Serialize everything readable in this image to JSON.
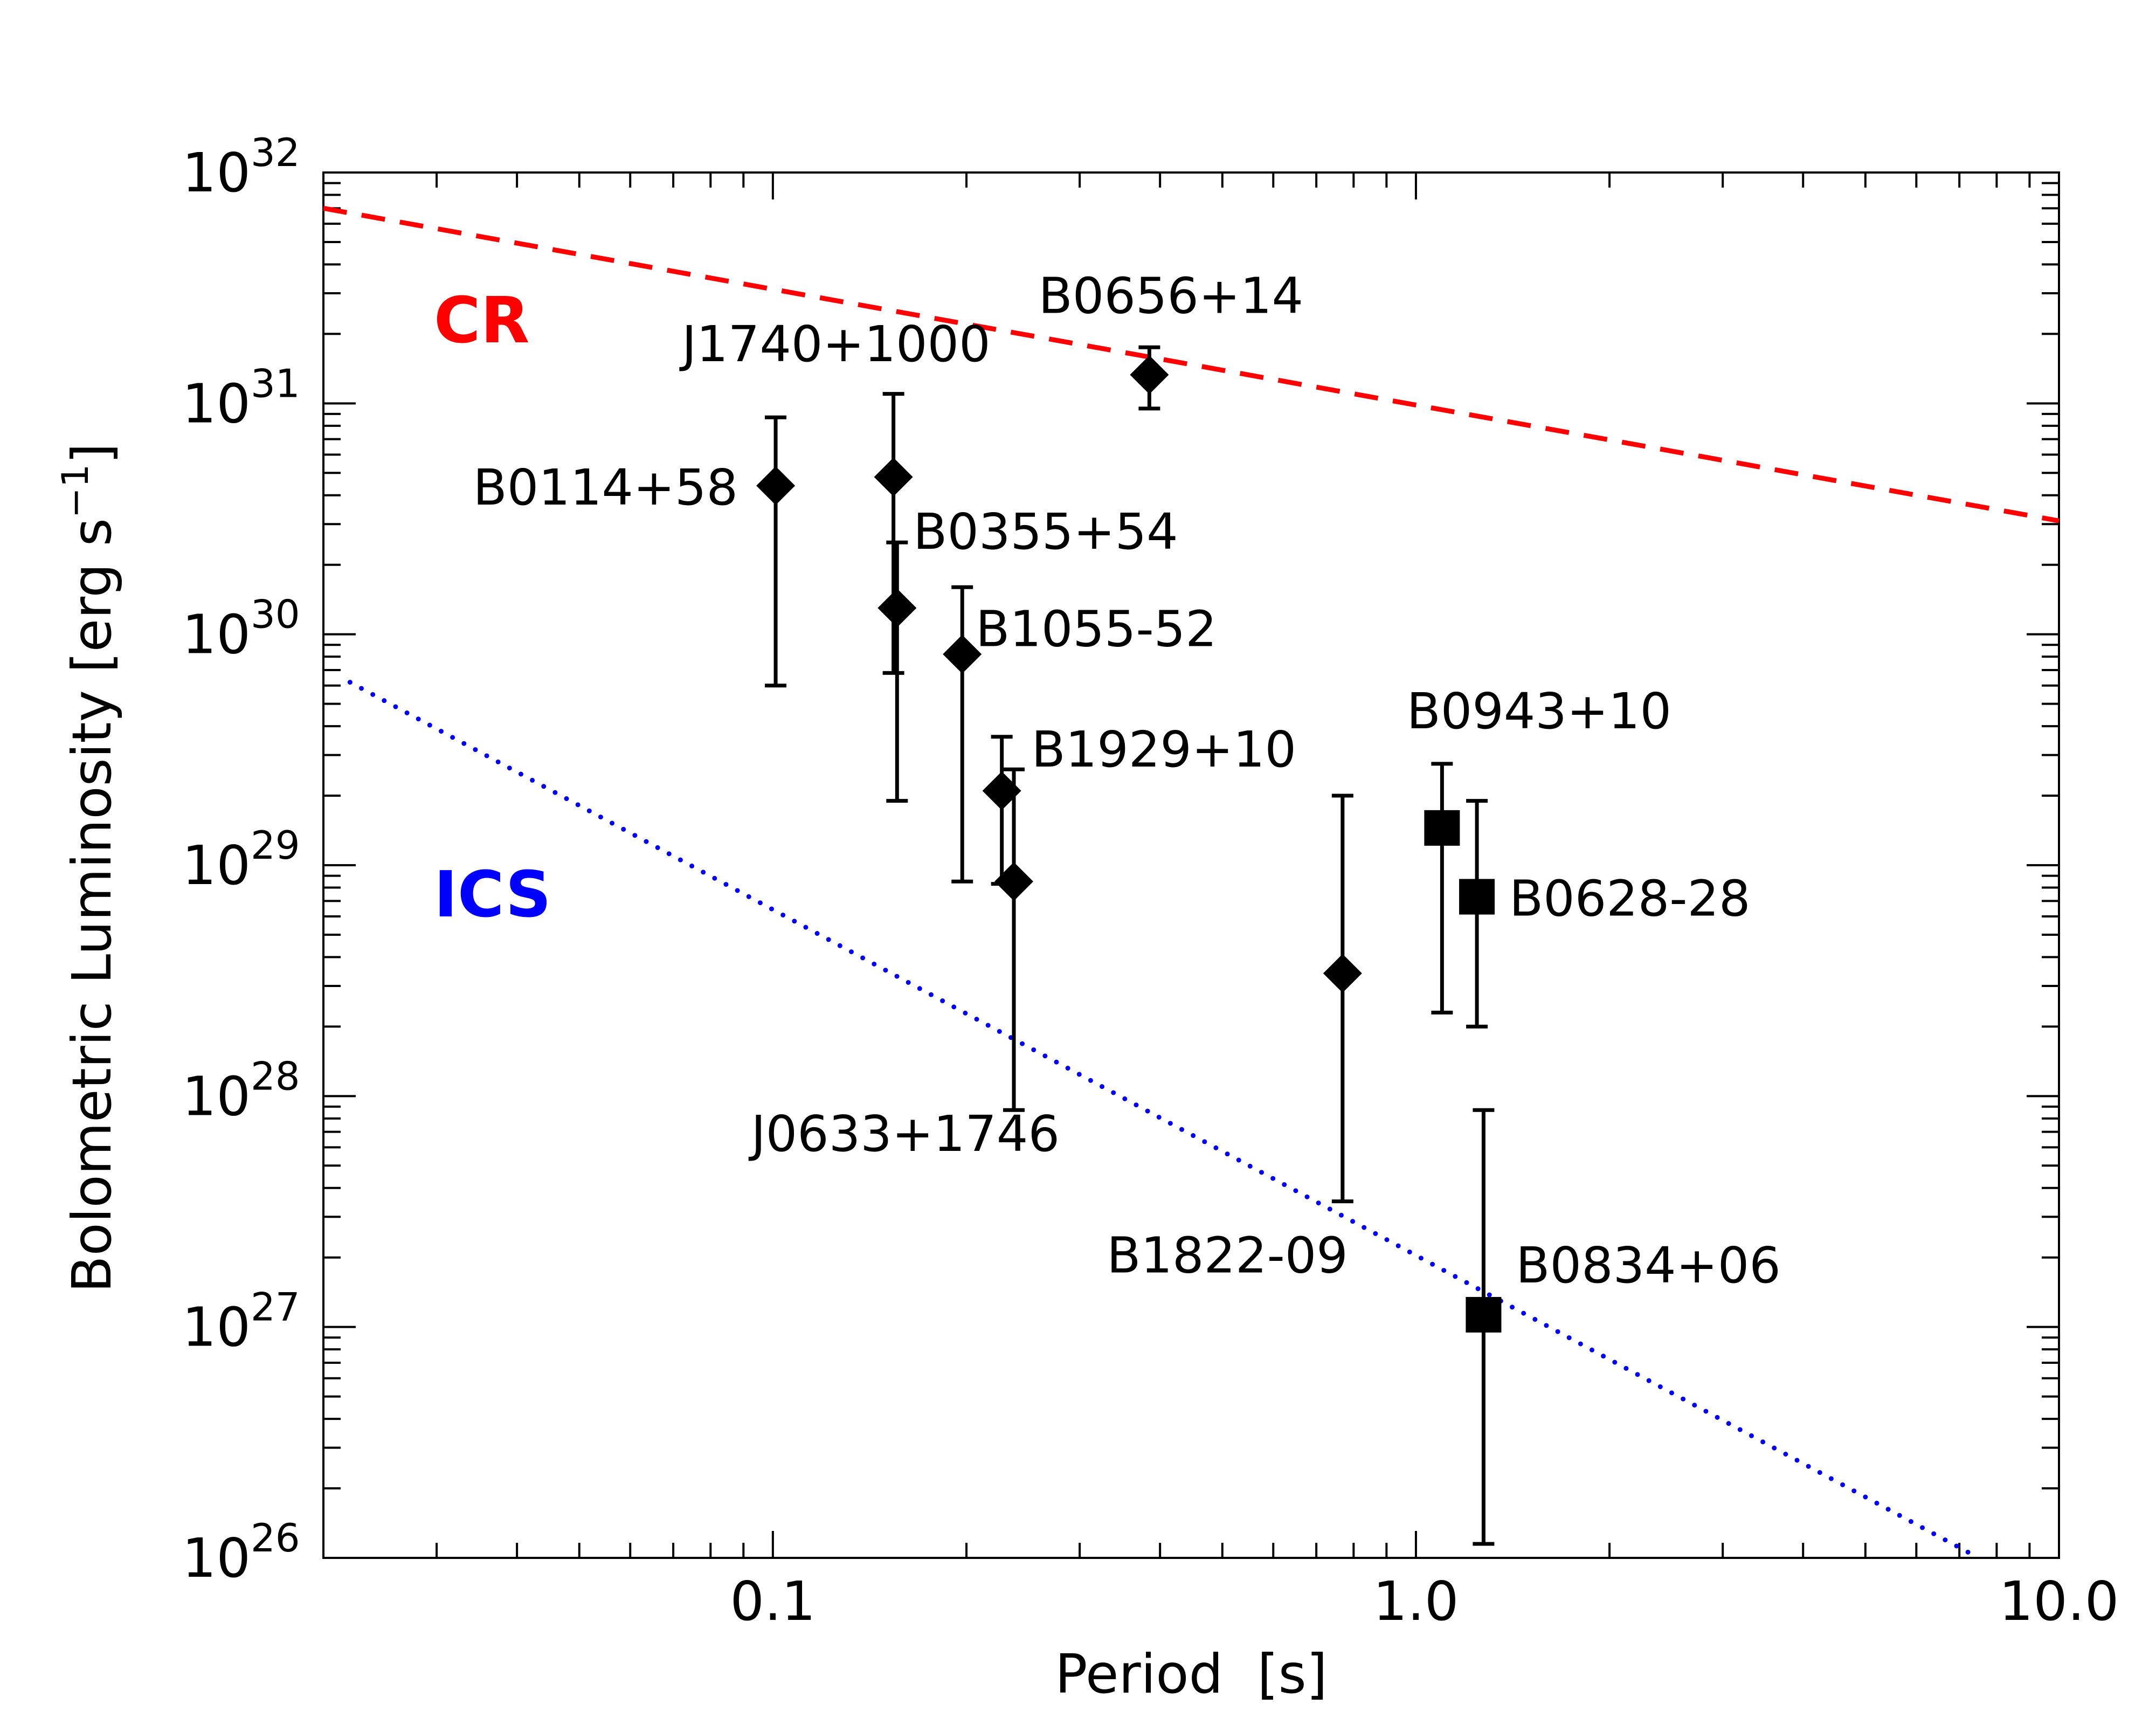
{
  "chart_data": {
    "type": "scatter",
    "xlabel": "Period  [s]",
    "ylabel_main": "Bolometric Luminosity [erg s",
    "ylabel_sup": "−1",
    "ylabel_close": "]",
    "xscale": "log",
    "yscale": "log",
    "xlim": [
      0.02,
      10.0
    ],
    "ylim": [
      1e+26,
      1e+32
    ],
    "xtick_labels": [
      {
        "value": 0.1,
        "label": "0.1"
      },
      {
        "value": 1.0,
        "label": "1.0"
      },
      {
        "value": 10.0,
        "label": "10.0"
      }
    ],
    "ytick_labels": [
      {
        "exp": 26,
        "base": "10",
        "sup": "26"
      },
      {
        "exp": 27,
        "base": "10",
        "sup": "27"
      },
      {
        "exp": 28,
        "base": "10",
        "sup": "28"
      },
      {
        "exp": 29,
        "base": "10",
        "sup": "29"
      },
      {
        "exp": 30,
        "base": "10",
        "sup": "30"
      },
      {
        "exp": 31,
        "base": "10",
        "sup": "31"
      },
      {
        "exp": 32,
        "base": "10",
        "sup": "32"
      }
    ],
    "lines": [
      {
        "label": "CR",
        "style": "dashed",
        "color": "#ff0000",
        "x": [
          0.02,
          10.0
        ],
        "y": [
          7e+31,
          3.1e+30
        ]
      },
      {
        "label": "ICS",
        "style": "dotted",
        "color": "#0000ff",
        "x": [
          0.022,
          7.5
        ],
        "y": [
          6.2e+29,
          1e+26
        ]
      }
    ],
    "points": [
      {
        "name": "B0114+58",
        "marker": "diamond",
        "x": 0.101,
        "y": 4.4e+30,
        "ylo": 6e+29,
        "yhi": 8.7e+30
      },
      {
        "name": "J1740+1000",
        "marker": "diamond",
        "x": 0.154,
        "y": 4.8e+30,
        "ylo": 6.8e+29,
        "yhi": 1.1e+31
      },
      {
        "name": "B0355+54",
        "marker": "diamond",
        "x": 0.156,
        "y": 1.3e+30,
        "ylo": 1.9e+29,
        "yhi": 2.5e+30
      },
      {
        "name": "B0656+14",
        "marker": "diamond",
        "x": 0.385,
        "y": 1.33e+31,
        "ylo": 9.5e+30,
        "yhi": 1.75e+31
      },
      {
        "name": "B1055-52",
        "marker": "diamond",
        "x": 0.197,
        "y": 8.2e+29,
        "ylo": 8.5e+28,
        "yhi": 1.6e+30
      },
      {
        "name": "B1929+10",
        "marker": "diamond",
        "x": 0.227,
        "y": 2.1e+29,
        "ylo": 8.3e+28,
        "yhi": 3.6e+29
      },
      {
        "name": "J0633+1746",
        "marker": "diamond",
        "x": 0.237,
        "y": 8.5e+28,
        "ylo": 8.7e+27,
        "yhi": 2.6e+29
      },
      {
        "name": "B1822-09",
        "marker": "diamond",
        "x": 0.769,
        "y": 3.4e+28,
        "ylo": 3.5e+27,
        "yhi": 2e+29
      },
      {
        "name": "B0943+10",
        "marker": "square",
        "x": 1.098,
        "y": 1.45e+29,
        "ylo": 2.3e+28,
        "yhi": 2.75e+29
      },
      {
        "name": "B0628-28",
        "marker": "square",
        "x": 1.244,
        "y": 7.3e+28,
        "ylo": 2e+28,
        "yhi": 1.9e+29
      },
      {
        "name": "B0834+06",
        "marker": "square",
        "x": 1.274,
        "y": 1.13e+27,
        "ylo": 1.15e+26,
        "yhi": 8.7e+27
      }
    ]
  }
}
